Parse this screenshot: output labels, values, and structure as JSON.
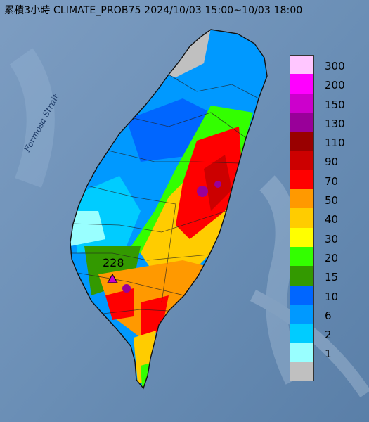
{
  "header": {
    "title": "累積3小時 CLIMATE_PROB75 2024/10/03 15:00~10/03 18:00"
  },
  "map": {
    "strait_label": "Formosa Strait",
    "max_marker_label": "228"
  },
  "legend": {
    "items": [
      {
        "label": "300",
        "color": "#ffc6ff"
      },
      {
        "label": "200",
        "color": "#ff00ff"
      },
      {
        "label": "150",
        "color": "#cc00cc"
      },
      {
        "label": "130",
        "color": "#990099"
      },
      {
        "label": "110",
        "color": "#990000"
      },
      {
        "label": "90",
        "color": "#cc0000"
      },
      {
        "label": "70",
        "color": "#ff0000"
      },
      {
        "label": "50",
        "color": "#ff9900"
      },
      {
        "label": "40",
        "color": "#ffcc00"
      },
      {
        "label": "30",
        "color": "#ffff00"
      },
      {
        "label": "20",
        "color": "#33ff00"
      },
      {
        "label": "15",
        "color": "#339900"
      },
      {
        "label": "10",
        "color": "#0066ff"
      },
      {
        "label": "6",
        "color": "#0099ff"
      },
      {
        "label": "2",
        "color": "#00ccff"
      },
      {
        "label": "1",
        "color": "#99ffff"
      },
      {
        "label": "",
        "color": "#c0c0c0"
      }
    ]
  }
}
